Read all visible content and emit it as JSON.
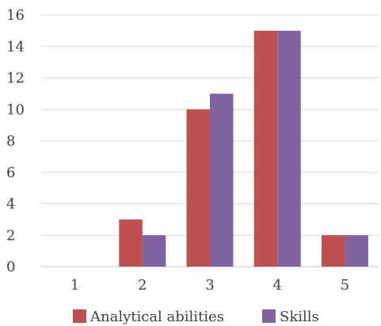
{
  "chart_data": {
    "type": "bar",
    "title": "",
    "xlabel": "",
    "ylabel": "",
    "categories": [
      "1",
      "2",
      "3",
      "4",
      "5"
    ],
    "series": [
      {
        "name": "Analytical abilities",
        "color": "#c0504d",
        "values": [
          0,
          3,
          10,
          15,
          2
        ]
      },
      {
        "name": "Skills",
        "color": "#8064a2",
        "values": [
          0,
          2,
          11,
          15,
          2
        ]
      }
    ],
    "ylim": [
      0,
      16
    ],
    "yticks": [
      0,
      2,
      4,
      6,
      8,
      10,
      12,
      14,
      16
    ],
    "grid": true,
    "legend_position": "bottom"
  }
}
